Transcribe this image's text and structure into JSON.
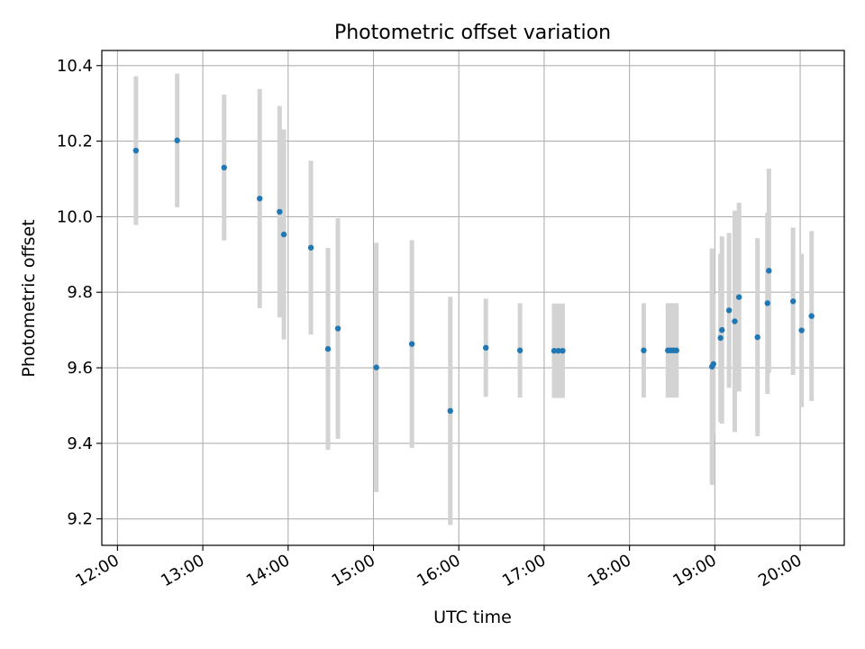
{
  "chart_data": {
    "type": "scatter",
    "title": "Photometric offset variation",
    "xlabel": "UTC time",
    "ylabel": "Photometric offset",
    "x_ticks": [
      "12:00",
      "13:00",
      "14:00",
      "15:00",
      "16:00",
      "17:00",
      "18:00",
      "19:00",
      "20:00"
    ],
    "y_ticks": [
      "9.2",
      "9.4",
      "9.6",
      "9.8",
      "10.0",
      "10.2",
      "10.4"
    ],
    "x_unit": "UTC time (HH:MM)",
    "xlim": [
      "11:49",
      "20:31"
    ],
    "ylim": [
      9.13,
      10.44
    ],
    "grid": true,
    "colors": {
      "point": "#1f77b4",
      "errorbar": "#d3d3d3",
      "grid": "#b0b0b0",
      "axes": "#000000"
    },
    "series": [
      {
        "points": [
          {
            "x": "12:13",
            "y": 10.175,
            "err": 0.197
          },
          {
            "x": "12:42",
            "y": 10.202,
            "err": 0.177
          },
          {
            "x": "13:15",
            "y": 10.13,
            "err": 0.193
          },
          {
            "x": "13:40",
            "y": 10.048,
            "err": 0.29
          },
          {
            "x": "13:54",
            "y": 10.013,
            "err": 0.28
          },
          {
            "x": "13:57",
            "y": 9.953,
            "err": 0.278
          },
          {
            "x": "14:16",
            "y": 9.918,
            "err": 0.23
          },
          {
            "x": "14:28",
            "y": 9.65,
            "err": 0.267
          },
          {
            "x": "14:35",
            "y": 9.704,
            "err": 0.292
          },
          {
            "x": "15:02",
            "y": 9.601,
            "err": 0.33
          },
          {
            "x": "15:27",
            "y": 9.663,
            "err": 0.275
          },
          {
            "x": "15:54",
            "y": 9.486,
            "err": 0.302
          },
          {
            "x": "16:19",
            "y": 9.653,
            "err": 0.13
          },
          {
            "x": "16:43",
            "y": 9.646,
            "err": 0.125
          },
          {
            "x": "17:07",
            "y": 9.645,
            "err": 0.125
          },
          {
            "x": "17:10",
            "y": 9.645,
            "err": 0.125
          },
          {
            "x": "17:13",
            "y": 9.645,
            "err": 0.125
          },
          {
            "x": "18:10",
            "y": 9.646,
            "err": 0.125
          },
          {
            "x": "18:27",
            "y": 9.646,
            "err": 0.125
          },
          {
            "x": "18:29",
            "y": 9.646,
            "err": 0.125
          },
          {
            "x": "18:31",
            "y": 9.646,
            "err": 0.125
          },
          {
            "x": "18:33",
            "y": 9.646,
            "err": 0.125
          },
          {
            "x": "18:58",
            "y": 9.603,
            "err": 0.313
          },
          {
            "x": "18:59",
            "y": 9.61,
            "err": 0.185
          },
          {
            "x": "19:04",
            "y": 9.679,
            "err": 0.223
          },
          {
            "x": "19:05",
            "y": 9.7,
            "err": 0.248
          },
          {
            "x": "19:10",
            "y": 9.752,
            "err": 0.205
          },
          {
            "x": "19:14",
            "y": 9.723,
            "err": 0.293
          },
          {
            "x": "19:17",
            "y": 9.787,
            "err": 0.25
          },
          {
            "x": "19:30",
            "y": 9.681,
            "err": 0.262
          },
          {
            "x": "19:37",
            "y": 9.771,
            "err": 0.24
          },
          {
            "x": "19:38",
            "y": 9.857,
            "err": 0.27
          },
          {
            "x": "19:55",
            "y": 9.776,
            "err": 0.195
          },
          {
            "x": "20:01",
            "y": 9.699,
            "err": 0.203
          },
          {
            "x": "20:08",
            "y": 9.737,
            "err": 0.225
          }
        ]
      }
    ]
  }
}
